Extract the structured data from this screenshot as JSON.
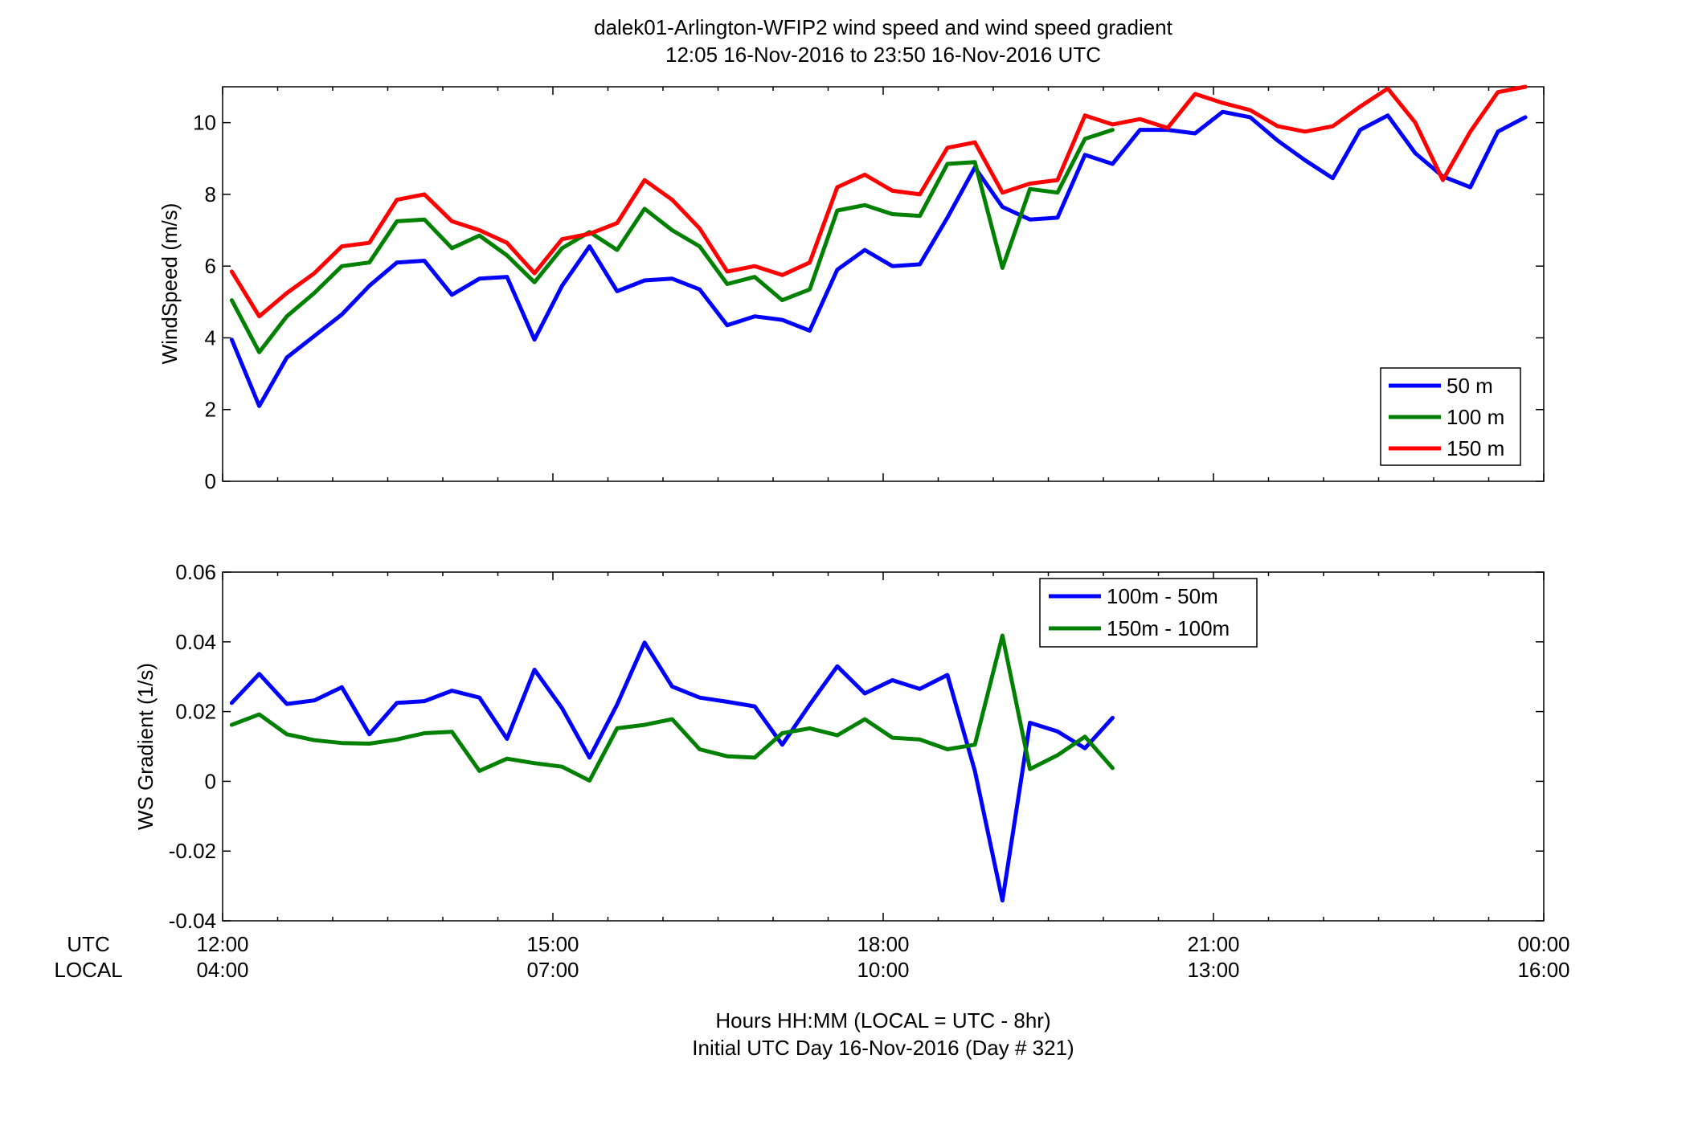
{
  "figure": {
    "title_line1": "dalek01-Arlington-WFIP2  wind speed and wind speed gradient",
    "title_line2": "12:05 16-Nov-2016 to 23:50 16-Nov-2016  UTC",
    "xlabel_line1": "Hours HH:MM  (LOCAL = UTC - 8hr)",
    "xlabel_line2": "Initial UTC Day 16-Nov-2016 (Day # 321)",
    "row_label_utc": "UTC",
    "row_label_local": "LOCAL"
  },
  "chart_data": [
    {
      "type": "line",
      "ylabel": "WindSpeed (m/s)",
      "xlim": [
        12,
        24
      ],
      "ylim": [
        0,
        11
      ],
      "x_unit": "hours UTC",
      "x_ticks": [
        12,
        15,
        18,
        21,
        24
      ],
      "x_tick_labels_utc": [
        "12:00",
        "15:00",
        "18:00",
        "21:00",
        "00:00"
      ],
      "x_tick_labels_local": [
        "04:00",
        "07:00",
        "10:00",
        "13:00",
        "16:00"
      ],
      "x_minor_ticks": [
        12.5,
        13,
        13.5,
        14,
        14.5,
        15.5,
        16,
        16.5,
        17,
        17.5,
        18.5,
        19,
        19.5,
        20,
        20.5,
        21.5,
        22,
        22.5,
        23,
        23.5
      ],
      "y_ticks": [
        0,
        2,
        4,
        6,
        8,
        10
      ],
      "legend_position": "bottom-right",
      "grid": false,
      "series": [
        {
          "name": "50 m",
          "color": "#0000ff",
          "points": [
            [
              12.083,
              3.95
            ],
            [
              12.333,
              2.1
            ],
            [
              12.583,
              3.45
            ],
            [
              12.833,
              4.05
            ],
            [
              13.083,
              4.65
            ],
            [
              13.333,
              5.45
            ],
            [
              13.583,
              6.1
            ],
            [
              13.833,
              6.15
            ],
            [
              14.083,
              5.2
            ],
            [
              14.333,
              5.65
            ],
            [
              14.583,
              5.7
            ],
            [
              14.833,
              3.95
            ],
            [
              15.083,
              5.45
            ],
            [
              15.333,
              6.55
            ],
            [
              15.583,
              5.3
            ],
            [
              15.833,
              5.6
            ],
            [
              16.083,
              5.65
            ],
            [
              16.333,
              5.35
            ],
            [
              16.583,
              4.35
            ],
            [
              16.833,
              4.6
            ],
            [
              17.083,
              4.5
            ],
            [
              17.333,
              4.2
            ],
            [
              17.583,
              5.9
            ],
            [
              17.833,
              6.45
            ],
            [
              18.083,
              6.0
            ],
            [
              18.333,
              6.05
            ],
            [
              18.583,
              7.35
            ],
            [
              18.833,
              8.75
            ],
            [
              19.083,
              7.65
            ],
            [
              19.333,
              7.3
            ],
            [
              19.583,
              7.35
            ],
            [
              19.833,
              9.1
            ],
            [
              20.083,
              8.85
            ],
            [
              20.333,
              9.8
            ],
            [
              20.583,
              9.8
            ],
            [
              20.833,
              9.7
            ],
            [
              21.083,
              10.3
            ],
            [
              21.333,
              10.15
            ],
            [
              21.583,
              9.5
            ],
            [
              21.833,
              8.95
            ],
            [
              22.083,
              8.45
            ],
            [
              22.333,
              9.8
            ],
            [
              22.583,
              10.2
            ],
            [
              22.833,
              9.15
            ],
            [
              23.083,
              8.5
            ],
            [
              23.333,
              8.2
            ],
            [
              23.583,
              9.75
            ],
            [
              23.833,
              10.15
            ]
          ]
        },
        {
          "name": "100 m",
          "color": "#008000",
          "points": [
            [
              12.083,
              5.05
            ],
            [
              12.333,
              3.6
            ],
            [
              12.583,
              4.6
            ],
            [
              12.833,
              5.25
            ],
            [
              13.083,
              6.0
            ],
            [
              13.333,
              6.1
            ],
            [
              13.583,
              7.25
            ],
            [
              13.833,
              7.3
            ],
            [
              14.083,
              6.5
            ],
            [
              14.333,
              6.85
            ],
            [
              14.583,
              6.3
            ],
            [
              14.833,
              5.55
            ],
            [
              15.083,
              6.5
            ],
            [
              15.333,
              6.95
            ],
            [
              15.583,
              6.45
            ],
            [
              15.833,
              7.6
            ],
            [
              16.083,
              7.0
            ],
            [
              16.333,
              6.55
            ],
            [
              16.583,
              5.5
            ],
            [
              16.833,
              5.7
            ],
            [
              17.083,
              5.05
            ],
            [
              17.333,
              5.35
            ],
            [
              17.583,
              7.55
            ],
            [
              17.833,
              7.7
            ],
            [
              18.083,
              7.45
            ],
            [
              18.333,
              7.4
            ],
            [
              18.583,
              8.85
            ],
            [
              18.833,
              8.9
            ],
            [
              19.083,
              5.95
            ],
            [
              19.333,
              8.15
            ],
            [
              19.583,
              8.05
            ],
            [
              19.833,
              9.55
            ],
            [
              20.083,
              9.8
            ]
          ]
        },
        {
          "name": "150 m",
          "color": "#ff0000",
          "points": [
            [
              12.083,
              5.85
            ],
            [
              12.333,
              4.6
            ],
            [
              12.583,
              5.25
            ],
            [
              12.833,
              5.8
            ],
            [
              13.083,
              6.55
            ],
            [
              13.333,
              6.65
            ],
            [
              13.583,
              7.85
            ],
            [
              13.833,
              8.0
            ],
            [
              14.083,
              7.25
            ],
            [
              14.333,
              7.0
            ],
            [
              14.583,
              6.65
            ],
            [
              14.833,
              5.8
            ],
            [
              15.083,
              6.75
            ],
            [
              15.333,
              6.9
            ],
            [
              15.583,
              7.2
            ],
            [
              15.833,
              8.4
            ],
            [
              16.083,
              7.85
            ],
            [
              16.333,
              7.05
            ],
            [
              16.583,
              5.85
            ],
            [
              16.833,
              6.0
            ],
            [
              17.083,
              5.75
            ],
            [
              17.333,
              6.1
            ],
            [
              17.583,
              8.2
            ],
            [
              17.833,
              8.55
            ],
            [
              18.083,
              8.1
            ],
            [
              18.333,
              8.0
            ],
            [
              18.583,
              9.3
            ],
            [
              18.833,
              9.45
            ],
            [
              19.083,
              8.05
            ],
            [
              19.333,
              8.3
            ],
            [
              19.583,
              8.4
            ],
            [
              19.833,
              10.2
            ],
            [
              20.083,
              9.95
            ],
            [
              20.333,
              10.1
            ],
            [
              20.583,
              9.85
            ],
            [
              20.833,
              10.8
            ],
            [
              21.083,
              10.55
            ],
            [
              21.333,
              10.35
            ],
            [
              21.583,
              9.9
            ],
            [
              21.833,
              9.75
            ],
            [
              22.083,
              9.9
            ],
            [
              22.333,
              10.45
            ],
            [
              22.583,
              10.95
            ],
            [
              22.833,
              10.0
            ],
            [
              23.083,
              8.4
            ],
            [
              23.333,
              9.75
            ],
            [
              23.583,
              10.85
            ],
            [
              23.833,
              11.0
            ]
          ]
        }
      ]
    },
    {
      "type": "line",
      "ylabel": "WS Gradient (1/s)",
      "xlim": [
        12,
        24
      ],
      "ylim": [
        -0.04,
        0.06
      ],
      "x_unit": "hours UTC",
      "x_ticks": [
        12,
        15,
        18,
        21,
        24
      ],
      "x_minor_ticks": [
        12.5,
        13,
        13.5,
        14,
        14.5,
        15.5,
        16,
        16.5,
        17,
        17.5,
        18.5,
        19,
        19.5,
        20,
        20.5,
        21.5,
        22,
        22.5,
        23,
        23.5
      ],
      "y_ticks": [
        -0.04,
        -0.02,
        0,
        0.02,
        0.04,
        0.06
      ],
      "y_tick_labels": [
        "-0.04",
        "-0.02",
        "0",
        "0.02",
        "0.04",
        "0.06"
      ],
      "legend_position": "top-right",
      "grid": false,
      "series": [
        {
          "name": "100m - 50m",
          "color": "#0000ff",
          "points": [
            [
              12.083,
              0.0225
            ],
            [
              12.333,
              0.0308
            ],
            [
              12.583,
              0.0222
            ],
            [
              12.833,
              0.0232
            ],
            [
              13.083,
              0.027
            ],
            [
              13.333,
              0.0135
            ],
            [
              13.583,
              0.0225
            ],
            [
              13.833,
              0.023
            ],
            [
              14.083,
              0.026
            ],
            [
              14.333,
              0.024
            ],
            [
              14.583,
              0.0122
            ],
            [
              14.833,
              0.032
            ],
            [
              15.083,
              0.021
            ],
            [
              15.333,
              0.0068
            ],
            [
              15.583,
              0.022
            ],
            [
              15.833,
              0.0398
            ],
            [
              16.083,
              0.0272
            ],
            [
              16.333,
              0.024
            ],
            [
              16.583,
              0.0228
            ],
            [
              16.833,
              0.0215
            ],
            [
              17.083,
              0.0105
            ],
            [
              17.333,
              0.022
            ],
            [
              17.583,
              0.033
            ],
            [
              17.833,
              0.0252
            ],
            [
              18.083,
              0.029
            ],
            [
              18.333,
              0.0265
            ],
            [
              18.583,
              0.0305
            ],
            [
              18.833,
              0.003
            ],
            [
              19.083,
              -0.0342
            ],
            [
              19.333,
              0.0168
            ],
            [
              19.583,
              0.0143
            ],
            [
              19.833,
              0.0095
            ],
            [
              20.083,
              0.0182
            ]
          ]
        },
        {
          "name": "150m - 100m",
          "color": "#008000",
          "points": [
            [
              12.083,
              0.0162
            ],
            [
              12.333,
              0.0192
            ],
            [
              12.583,
              0.0135
            ],
            [
              12.833,
              0.0118
            ],
            [
              13.083,
              0.011
            ],
            [
              13.333,
              0.0108
            ],
            [
              13.583,
              0.012
            ],
            [
              13.833,
              0.0138
            ],
            [
              14.083,
              0.0142
            ],
            [
              14.333,
              0.003
            ],
            [
              14.583,
              0.0065
            ],
            [
              14.833,
              0.0052
            ],
            [
              15.083,
              0.0042
            ],
            [
              15.333,
              0.0002
            ],
            [
              15.583,
              0.0152
            ],
            [
              15.833,
              0.0162
            ],
            [
              16.083,
              0.0178
            ],
            [
              16.333,
              0.0092
            ],
            [
              16.583,
              0.0072
            ],
            [
              16.833,
              0.0068
            ],
            [
              17.083,
              0.0138
            ],
            [
              17.333,
              0.0152
            ],
            [
              17.583,
              0.0132
            ],
            [
              17.833,
              0.0178
            ],
            [
              18.083,
              0.0125
            ],
            [
              18.333,
              0.012
            ],
            [
              18.583,
              0.0092
            ],
            [
              18.833,
              0.0105
            ],
            [
              19.083,
              0.0418
            ],
            [
              19.333,
              0.0035
            ],
            [
              19.583,
              0.0075
            ],
            [
              19.833,
              0.0128
            ],
            [
              20.083,
              0.0038
            ]
          ]
        }
      ]
    }
  ]
}
